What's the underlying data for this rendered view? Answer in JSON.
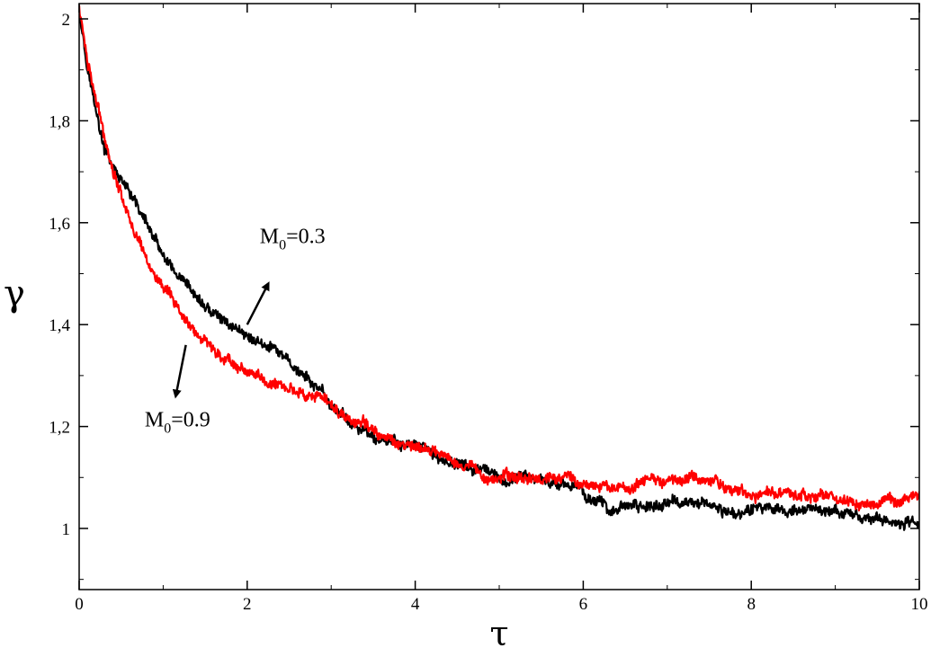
{
  "chart_data": {
    "type": "line",
    "xlabel": "τ",
    "ylabel": "γ",
    "xlim": [
      0,
      10
    ],
    "ylim": [
      0.88,
      2.03
    ],
    "x_ticks": [
      {
        "v": 0,
        "label": "0"
      },
      {
        "v": 2,
        "label": "2"
      },
      {
        "v": 4,
        "label": "4"
      },
      {
        "v": 6,
        "label": "6"
      },
      {
        "v": 8,
        "label": "8"
      },
      {
        "v": 10,
        "label": "10"
      }
    ],
    "y_ticks": [
      {
        "v": 1.0,
        "label": "1"
      },
      {
        "v": 1.2,
        "label": "1,2"
      },
      {
        "v": 1.4,
        "label": "1,4"
      },
      {
        "v": 1.6,
        "label": "1,6"
      },
      {
        "v": 1.8,
        "label": "1,8"
      },
      {
        "v": 2.0,
        "label": "2"
      }
    ],
    "grid": false,
    "series": [
      {
        "color": "#000000",
        "noise": 0.012,
        "x": [
          0,
          0.1,
          0.2,
          0.3,
          0.4,
          0.5,
          0.6,
          0.7,
          0.8,
          1.0,
          1.2,
          1.4,
          1.6,
          1.8,
          2.0,
          2.2,
          2.4,
          2.6,
          2.8,
          3.0,
          3.3,
          3.6,
          4.0,
          4.4,
          4.8,
          5.0,
          5.4,
          5.8,
          6.0,
          6.3,
          6.6,
          7.0,
          7.4,
          7.8,
          8.0,
          8.4,
          8.8,
          9.0,
          9.4,
          9.8,
          10.0
        ],
        "y": [
          2.02,
          1.91,
          1.82,
          1.74,
          1.71,
          1.68,
          1.65,
          1.63,
          1.6,
          1.53,
          1.48,
          1.45,
          1.42,
          1.4,
          1.38,
          1.36,
          1.34,
          1.31,
          1.28,
          1.24,
          1.2,
          1.17,
          1.16,
          1.13,
          1.11,
          1.09,
          1.1,
          1.09,
          1.07,
          1.04,
          1.04,
          1.05,
          1.05,
          1.03,
          1.04,
          1.04,
          1.03,
          1.03,
          1.02,
          1.01,
          1.01
        ]
      },
      {
        "color": "#ff0000",
        "noise": 0.012,
        "x": [
          0,
          0.1,
          0.2,
          0.3,
          0.4,
          0.5,
          0.6,
          0.7,
          0.8,
          1.0,
          1.2,
          1.4,
          1.6,
          1.8,
          2.0,
          2.2,
          2.4,
          2.6,
          2.8,
          3.0,
          3.3,
          3.6,
          4.0,
          4.4,
          4.8,
          5.0,
          5.4,
          5.8,
          6.0,
          6.3,
          6.6,
          7.0,
          7.4,
          7.8,
          8.0,
          8.4,
          8.8,
          9.0,
          9.4,
          9.8,
          10.0
        ],
        "y": [
          2.02,
          1.92,
          1.84,
          1.77,
          1.71,
          1.66,
          1.61,
          1.57,
          1.53,
          1.47,
          1.42,
          1.38,
          1.35,
          1.33,
          1.31,
          1.29,
          1.28,
          1.27,
          1.26,
          1.24,
          1.21,
          1.18,
          1.16,
          1.14,
          1.11,
          1.1,
          1.1,
          1.1,
          1.09,
          1.08,
          1.08,
          1.1,
          1.1,
          1.08,
          1.07,
          1.07,
          1.06,
          1.06,
          1.05,
          1.05,
          1.06
        ]
      }
    ],
    "annotations": [
      {
        "main": "M",
        "sub": "0",
        "rest": "=0.3",
        "x": 2.15,
        "y": 1.56,
        "arrow_from": [
          2.0,
          1.4
        ],
        "arrow_to": [
          2.25,
          1.48
        ]
      },
      {
        "main": "M",
        "sub": "0",
        "rest": "=0.9",
        "x": 0.78,
        "y": 1.2,
        "arrow_from": [
          1.27,
          1.36
        ],
        "arrow_to": [
          1.15,
          1.26
        ]
      }
    ]
  }
}
